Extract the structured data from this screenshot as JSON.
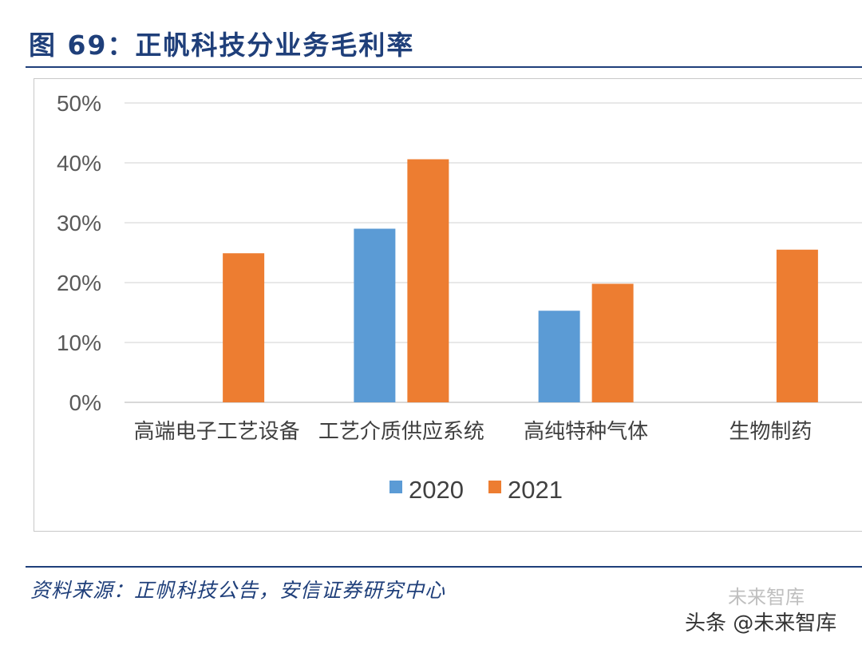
{
  "figure": {
    "title": "图 69：正帆科技分业务毛利率",
    "source": "资料来源：正帆科技公告，安信证券研究中心"
  },
  "watermark": {
    "text": "头条 @未来智库",
    "brand": "未来智库"
  },
  "chart_data": {
    "type": "bar",
    "title": "",
    "xlabel": "",
    "ylabel": "",
    "categories": [
      "高端电子工艺设备",
      "工艺介质供应系统",
      "高纯特种气体",
      "生物制药"
    ],
    "series": [
      {
        "name": "2020",
        "color": "#5b9bd5",
        "values": [
          null,
          29,
          15.3,
          null
        ]
      },
      {
        "name": "2021",
        "color": "#ed7d31",
        "values": [
          24.9,
          40.6,
          19.8,
          25.5
        ]
      }
    ],
    "ylim": [
      0,
      50
    ],
    "yticks": [
      "0%",
      "10%",
      "20%",
      "30%",
      "40%",
      "50%"
    ],
    "grid": true,
    "legend_position": "bottom-center"
  }
}
